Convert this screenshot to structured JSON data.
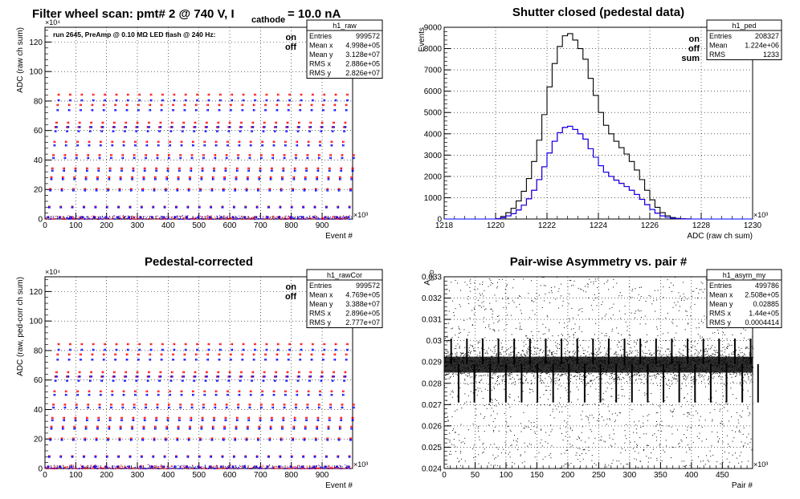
{
  "chart_data": [
    {
      "id": "raw",
      "type": "scatter",
      "title_parts": {
        "a": "Filter wheel scan: pmt#   2 @    740 V, I",
        "sub": "cathode",
        "b": "     = 10.0 nA"
      },
      "xlabel": "Event #",
      "ylabel": "ADC (raw ch sum)",
      "x_exponent": "×10³",
      "y_exponent": "×10⁴",
      "xlim": [
        0,
        999
      ],
      "ylim": [
        0,
        130
      ],
      "x_ticks": [
        0,
        100,
        200,
        300,
        400,
        500,
        600,
        700,
        800,
        900
      ],
      "y_ticks": [
        0,
        20,
        40,
        60,
        80,
        100,
        120
      ],
      "annotation": "run 2645, PreAmp @ 0.10 MΩ  LED flash @  240 Hz:",
      "legend": [
        {
          "label": "on",
          "color": "#ff0000"
        },
        {
          "label": "off",
          "color": "#0000ff"
        }
      ],
      "scan_levels": [
        2,
        9,
        21,
        29,
        35,
        44,
        53,
        63,
        66,
        78,
        85
      ],
      "stats": {
        "name": "h1_raw",
        "rows": [
          [
            "Entries",
            "999572"
          ],
          [
            "Mean x",
            "4.998e+05"
          ],
          [
            "Mean y",
            "3.128e+07"
          ],
          [
            "RMS x",
            "2.886e+05"
          ],
          [
            "RMS y",
            "2.826e+07"
          ]
        ]
      }
    },
    {
      "id": "ped",
      "type": "line",
      "title": "Shutter closed (pedestal data)",
      "xlabel": "ADC (raw ch sum)",
      "ylabel": "Events",
      "x_exponent": "×10³",
      "xlim": [
        1218,
        1230
      ],
      "ylim": [
        0,
        9000
      ],
      "x_ticks": [
        1218,
        1220,
        1222,
        1224,
        1226,
        1228,
        1230
      ],
      "y_ticks": [
        0,
        1000,
        2000,
        3000,
        4000,
        5000,
        6000,
        7000,
        8000,
        9000
      ],
      "bin_width": 0.2,
      "series": [
        {
          "name": "sum",
          "color": "#000000",
          "x": [
            1220,
            1220.2,
            1220.4,
            1220.6,
            1220.8,
            1221,
            1221.2,
            1221.4,
            1221.6,
            1221.8,
            1222,
            1222.2,
            1222.4,
            1222.6,
            1222.8,
            1223,
            1223.2,
            1223.4,
            1223.6,
            1223.8,
            1224,
            1224.2,
            1224.4,
            1224.6,
            1224.8,
            1225,
            1225.2,
            1225.4,
            1225.6,
            1225.8,
            1226,
            1226.2,
            1226.4,
            1226.6,
            1226.8,
            1227,
            1227.2,
            1227.4,
            1227.6
          ],
          "values": [
            20,
            120,
            300,
            500,
            850,
            1300,
            1900,
            2700,
            3700,
            4900,
            6200,
            7300,
            8100,
            8600,
            8700,
            8400,
            8000,
            7500,
            6600,
            5800,
            5000,
            4400,
            4000,
            3650,
            3350,
            3050,
            2700,
            2300,
            1850,
            1350,
            900,
            550,
            300,
            150,
            70,
            30,
            10,
            5,
            0
          ]
        },
        {
          "name": "on",
          "color": "#ff0000",
          "x": [
            1220,
            1220.2,
            1220.4,
            1220.6,
            1220.8,
            1221,
            1221.2,
            1221.4,
            1221.6,
            1221.8,
            1222,
            1222.2,
            1222.4,
            1222.6,
            1222.8,
            1223,
            1223.2,
            1223.4,
            1223.6,
            1223.8,
            1224,
            1224.2,
            1224.4,
            1224.6,
            1224.8,
            1225,
            1225.2,
            1225.4,
            1225.6,
            1225.8,
            1226,
            1226.2,
            1226.4,
            1226.6,
            1226.8,
            1227,
            1227.2,
            1227.4,
            1227.6
          ],
          "values": [
            10,
            60,
            150,
            250,
            430,
            650,
            950,
            1350,
            1850,
            2450,
            3100,
            3650,
            4050,
            4300,
            4350,
            4200,
            4000,
            3750,
            3300,
            2900,
            2500,
            2200,
            2000,
            1830,
            1680,
            1530,
            1350,
            1150,
            930,
            680,
            450,
            280,
            150,
            75,
            35,
            15,
            5,
            2,
            0
          ]
        },
        {
          "name": "off",
          "color": "#0000ff",
          "x": [
            1220,
            1220.2,
            1220.4,
            1220.6,
            1220.8,
            1221,
            1221.2,
            1221.4,
            1221.6,
            1221.8,
            1222,
            1222.2,
            1222.4,
            1222.6,
            1222.8,
            1223,
            1223.2,
            1223.4,
            1223.6,
            1223.8,
            1224,
            1224.2,
            1224.4,
            1224.6,
            1224.8,
            1225,
            1225.2,
            1225.4,
            1225.6,
            1225.8,
            1226,
            1226.2,
            1226.4,
            1226.6,
            1226.8,
            1227,
            1227.2,
            1227.4,
            1227.6
          ],
          "values": [
            10,
            60,
            150,
            250,
            420,
            650,
            950,
            1350,
            1850,
            2450,
            3100,
            3650,
            4050,
            4300,
            4350,
            4200,
            4000,
            3750,
            3300,
            2900,
            2500,
            2200,
            2000,
            1820,
            1670,
            1520,
            1350,
            1150,
            920,
            670,
            450,
            270,
            150,
            75,
            35,
            15,
            5,
            3,
            0
          ]
        }
      ],
      "legend": [
        {
          "label": "on",
          "color": "#ff0000"
        },
        {
          "label": "off",
          "color": "#0000ff"
        },
        {
          "label": "sum",
          "color": "#000000"
        }
      ],
      "stats": {
        "name": "h1_ped",
        "rows": [
          [
            "Entries",
            "208327"
          ],
          [
            "Mean",
            "1.224e+06"
          ],
          [
            "RMS",
            "1233"
          ]
        ]
      }
    },
    {
      "id": "cor",
      "type": "scatter",
      "title": "Pedestal-corrected",
      "xlabel": "Event #",
      "ylabel": "ADC (raw, ped-corr ch sum)",
      "x_exponent": "×10³",
      "y_exponent": "×10⁴",
      "xlim": [
        0,
        999
      ],
      "ylim": [
        0,
        130
      ],
      "x_ticks": [
        0,
        100,
        200,
        300,
        400,
        500,
        600,
        700,
        800,
        900
      ],
      "y_ticks": [
        0,
        20,
        40,
        60,
        80,
        100,
        120
      ],
      "legend": [
        {
          "label": "on",
          "color": "#ff0000"
        },
        {
          "label": "off",
          "color": "#0000ff"
        }
      ],
      "scan_levels": [
        2,
        9,
        21,
        29,
        35,
        44,
        53,
        63,
        66,
        78,
        85
      ],
      "stats": {
        "name": "h1_rawCor",
        "rows": [
          [
            "Entries",
            "999572"
          ],
          [
            "Mean x",
            "4.769e+05"
          ],
          [
            "Mean y",
            "3.388e+07"
          ],
          [
            "RMS x",
            "2.896e+05"
          ],
          [
            "RMS y",
            "2.777e+07"
          ]
        ]
      }
    },
    {
      "id": "asym",
      "type": "scatter",
      "title": "Pair-wise Asymmetry vs. pair #",
      "xlabel": "Pair #",
      "ylabel": "A",
      "ylabel_sub": "LED",
      "x_exponent": "×10³",
      "xlim": [
        0,
        499
      ],
      "ylim": [
        0.024,
        0.033
      ],
      "x_ticks": [
        0,
        50,
        100,
        150,
        200,
        250,
        300,
        350,
        400,
        450
      ],
      "y_ticks": [
        0.024,
        0.025,
        0.026,
        0.027,
        0.028,
        0.029,
        0.03,
        0.031,
        0.032,
        0.033
      ],
      "center": 0.0289,
      "stats": {
        "name": "h1_asym_my",
        "rows": [
          [
            "Entries",
            "499786"
          ],
          [
            "Mean x",
            "2.508e+05"
          ],
          [
            "Mean y",
            "0.02885"
          ],
          [
            "RMS x",
            "1.44e+05"
          ],
          [
            "RMS y",
            "0.0004414"
          ]
        ]
      }
    }
  ]
}
